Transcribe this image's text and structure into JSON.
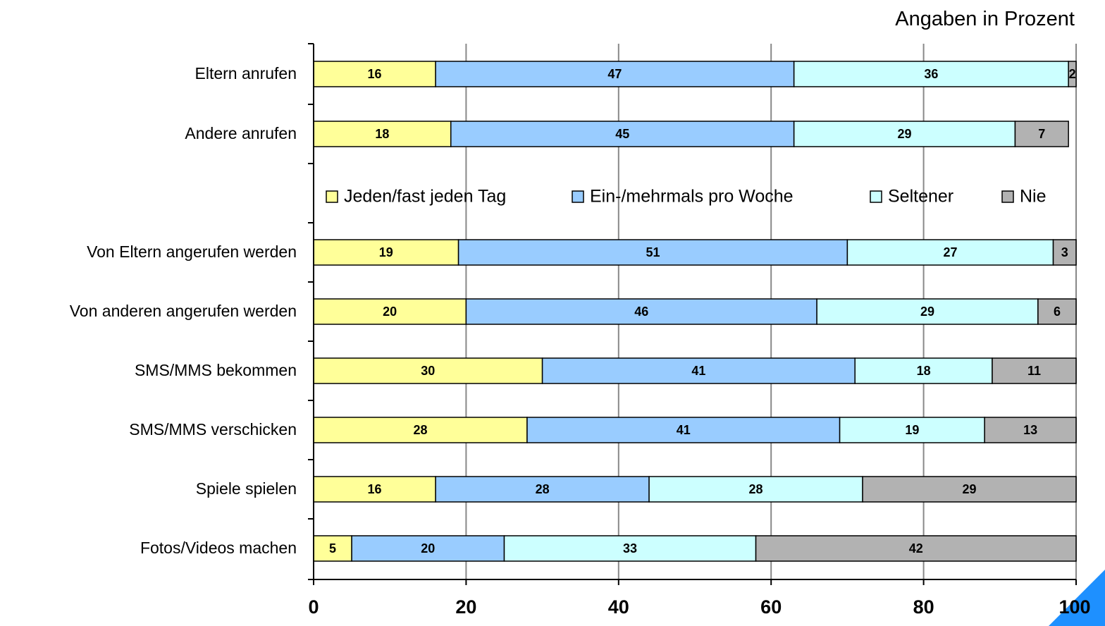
{
  "unit_note": "Angaben in Prozent",
  "colors": {
    "series": [
      "#ffff99",
      "#99ccff",
      "#ccffff",
      "#b2b2b2"
    ],
    "grid": "#888888",
    "corner_accent": "#1e90ff"
  },
  "chart_data": {
    "type": "bar",
    "orientation": "horizontal",
    "stacked": true,
    "categories": [
      "Eltern anrufen",
      "Andere anrufen",
      "Von Eltern angerufen werden",
      "Von anderen angerufen werden",
      "SMS/MMS bekommen",
      "SMS/MMS verschicken",
      "Spiele spielen",
      "Fotos/Videos machen"
    ],
    "series": [
      {
        "name": "Jeden/fast jeden Tag",
        "values": [
          16,
          18,
          19,
          20,
          30,
          28,
          16,
          5
        ]
      },
      {
        "name": "Ein-/mehrmals pro Woche",
        "values": [
          47,
          45,
          51,
          46,
          41,
          41,
          28,
          20
        ]
      },
      {
        "name": "Seltener",
        "values": [
          36,
          29,
          27,
          29,
          18,
          19,
          28,
          33
        ]
      },
      {
        "name": "Nie",
        "values": [
          2,
          7,
          3,
          6,
          11,
          13,
          29,
          42
        ]
      }
    ],
    "xlim": [
      0,
      100
    ],
    "xticks": [
      0,
      20,
      40,
      60,
      80,
      100
    ],
    "grid": true,
    "legend_position": "inside, top-center (between rows 2 and 3)",
    "data_labels": true
  }
}
